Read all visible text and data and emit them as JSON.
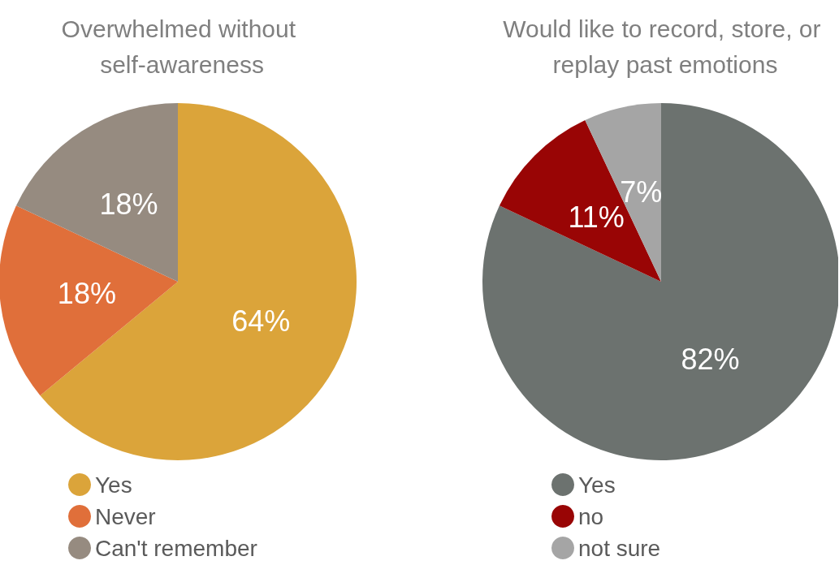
{
  "chart_data": [
    {
      "type": "pie",
      "title": "Overwhelmed without self-awareness",
      "categories": [
        "Yes",
        "Never",
        "Can't remember"
      ],
      "values": [
        64,
        18,
        18
      ],
      "colors": [
        "#dba43a",
        "#e06f3a",
        "#968b80"
      ],
      "value_labels": [
        "64%",
        "18%",
        "18%"
      ],
      "legend": "bottom left"
    },
    {
      "type": "pie",
      "title": "Would like to record, store, or replay past emotions",
      "categories": [
        "Yes",
        "no",
        "not sure"
      ],
      "values": [
        82,
        11,
        7
      ],
      "colors": [
        "#6c726f",
        "#990505",
        "#a5a5a5"
      ],
      "value_labels": [
        "82%",
        "11%",
        "7%"
      ],
      "legend": "bottom left"
    }
  ]
}
